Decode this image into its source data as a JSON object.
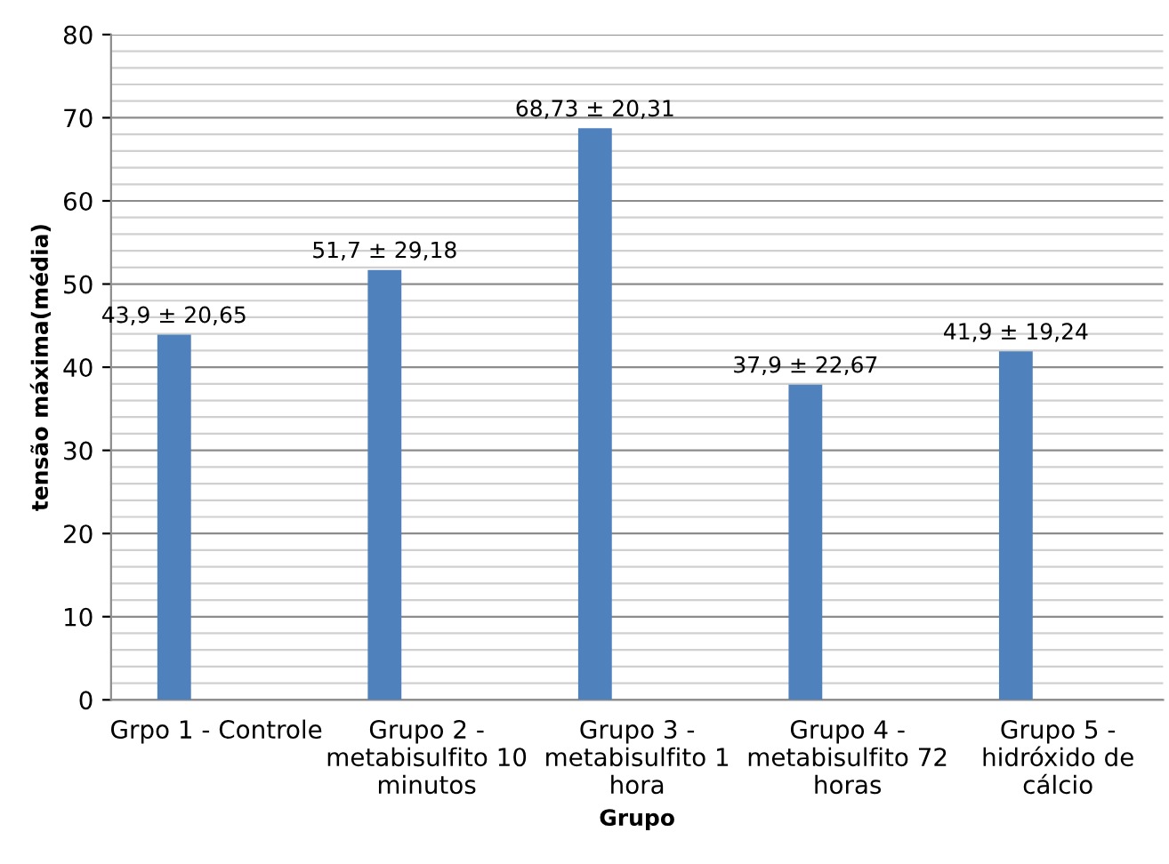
{
  "chart_data": {
    "type": "bar",
    "xlabel": "Grupo",
    "ylabel": "tensão máxima(média)",
    "categories": [
      "Grpo 1 - Controle",
      "Grupo 2 -\nmetabisulfito 10\nminutos",
      "Grupo 3 -\nmetabisulfito 1\nhora",
      "Grupo 4 -\nmetabisulfito 72\nhoras",
      "Grupo 5 -\nhidróxido de\ncálcio"
    ],
    "values": [
      43.9,
      51.7,
      68.73,
      37.9,
      41.9
    ],
    "value_labels": [
      "43,9 ± 20,65",
      "51,7 ± 29,18",
      "68,73 ± 20,31",
      "37,9 ± 22,67",
      "41,9 ± 19,24"
    ],
    "color": "#4f81bd",
    "ylim": [
      0,
      80
    ],
    "yticks": [
      0,
      {
        "value": 2,
        "label": null
      },
      {
        "value": 4,
        "label": null
      },
      {
        "value": 6,
        "label": null
      },
      {
        "value": 8,
        "label": null
      },
      10,
      {
        "value": 12,
        "label": null
      },
      {
        "value": 14,
        "label": null
      },
      {
        "value": 16,
        "label": null
      },
      {
        "value": 18,
        "label": null
      },
      20,
      {
        "value": 22,
        "label": null
      },
      {
        "value": 24,
        "label": null
      },
      {
        "value": 26,
        "label": null
      },
      {
        "value": 28,
        "label": null
      },
      30,
      {
        "value": 32,
        "label": null
      },
      {
        "value": 34,
        "label": null
      },
      {
        "value": 36,
        "label": null
      },
      {
        "value": 38,
        "label": null
      },
      40,
      {
        "value": 42,
        "label": null
      },
      {
        "value": 44,
        "label": null
      },
      {
        "value": 46,
        "label": null
      },
      {
        "value": 48,
        "label": null
      },
      50,
      {
        "value": 52,
        "label": null
      },
      {
        "value": 54,
        "label": null
      },
      {
        "value": 56,
        "label": null
      },
      {
        "value": 58,
        "label": null
      },
      60,
      {
        "value": 62,
        "label": null
      },
      {
        "value": 64,
        "label": null
      },
      {
        "value": 66,
        "label": null
      },
      {
        "value": 68,
        "label": null
      },
      70,
      {
        "value": 72,
        "label": null
      },
      {
        "value": 74,
        "label": null
      },
      {
        "value": 76,
        "label": null
      },
      {
        "value": 78,
        "label": null
      },
      80
    ],
    "grid": "y"
  }
}
